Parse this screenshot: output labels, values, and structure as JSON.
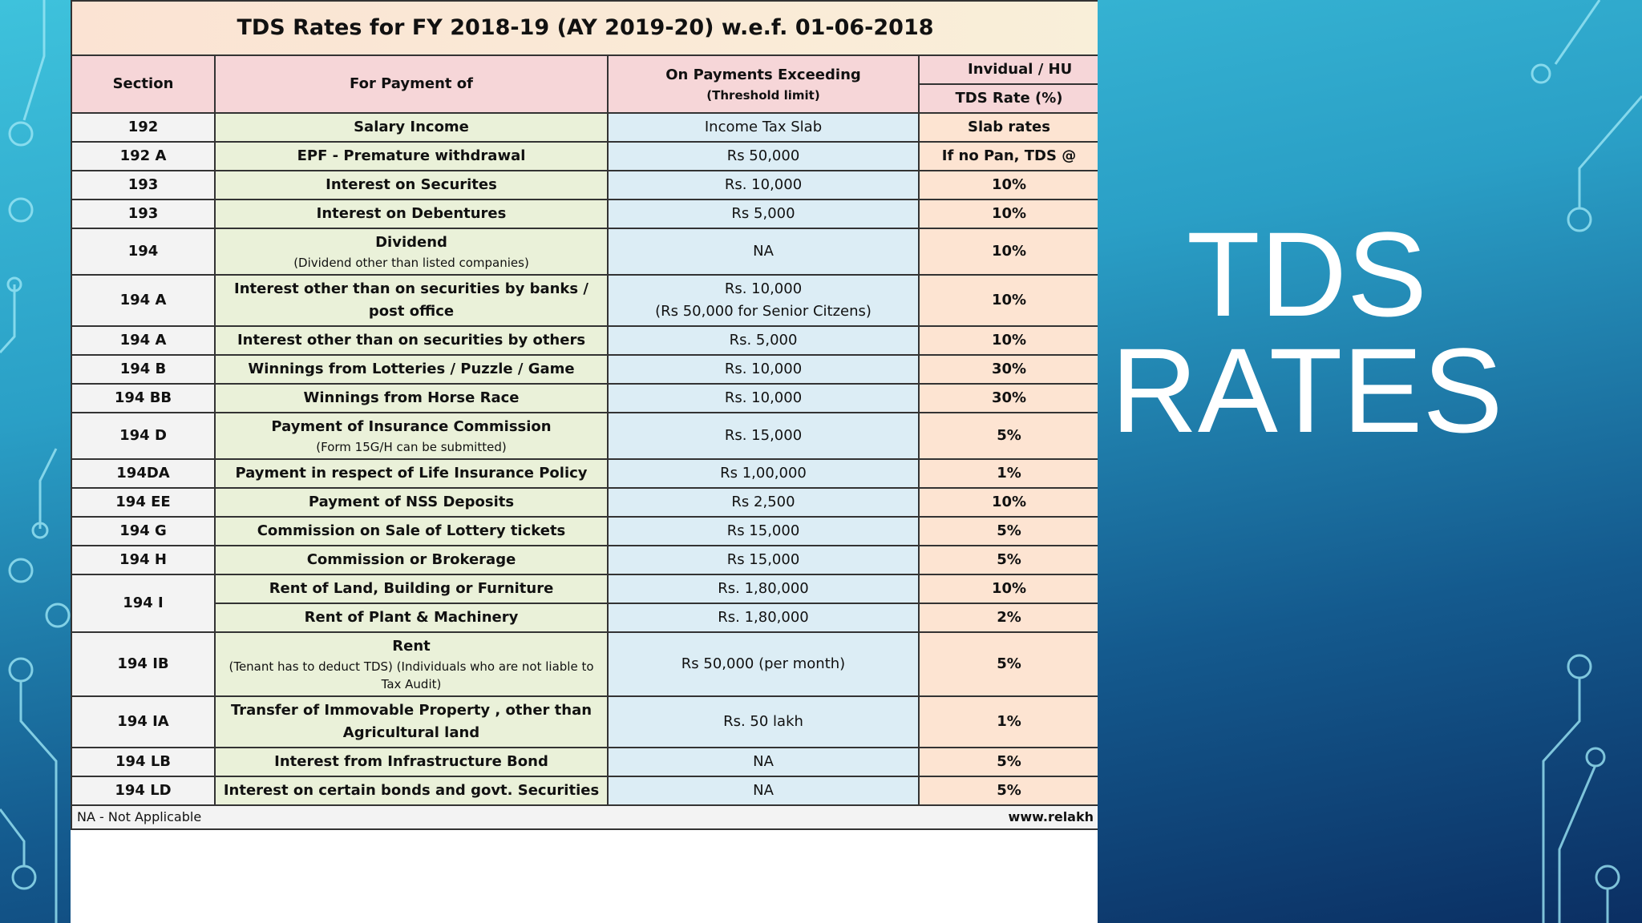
{
  "table": {
    "title": "TDS Rates for FY 2018-19 (AY 2019-20) w.e.f. 01-06-2018",
    "headers": {
      "section": "Section",
      "payment": "For Payment of",
      "threshold": "On Payments Exceeding",
      "threshold_note": "(Threshold limit)",
      "rate_group": "Invidual / HU",
      "rate": "TDS Rate (%)"
    },
    "rows": [
      {
        "section": "192",
        "payment": "Salary Income",
        "threshold": "Income Tax Slab",
        "rate": "Slab rates"
      },
      {
        "section": "192 A",
        "payment": "EPF - Premature withdrawal",
        "threshold": "Rs 50,000",
        "rate": "If no Pan, TDS @"
      },
      {
        "section": "193",
        "payment": "Interest on Securites",
        "threshold": "Rs. 10,000",
        "rate": "10%"
      },
      {
        "section": "193",
        "payment": "Interest on Debentures",
        "threshold": "Rs 5,000",
        "rate": "10%"
      },
      {
        "section": "194",
        "payment": "Dividend",
        "payment_note": "(Dividend other than listed companies)",
        "threshold": "NA",
        "rate": "10%"
      },
      {
        "section": "194 A",
        "payment": "Interest other than on securities by banks / post office",
        "threshold": "Rs. 10,000",
        "threshold_note": "(Rs 50,000 for Senior Citzens)",
        "rate": "10%"
      },
      {
        "section": "194 A",
        "payment": "Interest other than on securities by others",
        "threshold": "Rs. 5,000",
        "rate": "10%"
      },
      {
        "section": "194 B",
        "payment": "Winnings from Lotteries / Puzzle / Game",
        "threshold": "Rs. 10,000",
        "rate": "30%"
      },
      {
        "section": "194 BB",
        "payment": "Winnings from Horse Race",
        "threshold": "Rs. 10,000",
        "rate": "30%"
      },
      {
        "section": "194 D",
        "payment": "Payment of Insurance Commission",
        "payment_note": "(Form 15G/H can be submitted)",
        "threshold": "Rs. 15,000",
        "rate": "5%"
      },
      {
        "section": "194DA",
        "payment": "Payment in respect of Life Insurance Policy",
        "threshold": "Rs 1,00,000",
        "rate": "1%"
      },
      {
        "section": "194 EE",
        "payment": "Payment of NSS Deposits",
        "threshold": "Rs 2,500",
        "rate": "10%"
      },
      {
        "section": "194 G",
        "payment": "Commission on Sale of Lottery tickets",
        "threshold": "Rs 15,000",
        "rate": "5%"
      },
      {
        "section": "194 H",
        "payment": "Commission or Brokerage",
        "threshold": "Rs 15,000",
        "rate": "5%"
      },
      {
        "section": "194 I",
        "payment": "Rent of Land, Building or Furniture",
        "threshold": "Rs. 1,80,000",
        "rate": "10%"
      },
      {
        "payment": "Rent of Plant & Machinery",
        "threshold": "Rs. 1,80,000",
        "rate": "2%"
      },
      {
        "section": "194 IB",
        "payment": "Rent",
        "payment_note": "(Tenant has to deduct TDS) (Individuals who are not liable to Tax Audit)",
        "threshold": "Rs 50,000 (per month)",
        "rate": "5%"
      },
      {
        "section": "194 IA",
        "payment": "Transfer of Immovable Property , other than Agricultural land",
        "threshold": "Rs. 50 lakh",
        "rate": "1%"
      },
      {
        "section": "194 LB",
        "payment": "Interest from Infrastructure Bond",
        "threshold": "NA",
        "rate": "5%"
      },
      {
        "section": "194 LD",
        "payment": "Interest on certain bonds and govt. Securities",
        "threshold": "NA",
        "rate": "5%"
      }
    ],
    "footer_note": "NA - Not Applicable",
    "footer_source": "www.relakh"
  },
  "slide": {
    "title": "TDS RATES"
  }
}
